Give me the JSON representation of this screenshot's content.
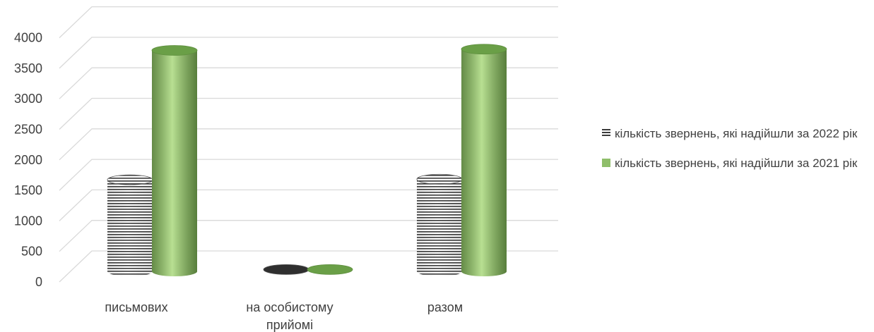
{
  "chart_data": {
    "type": "bar",
    "style": "3d-cylinder",
    "categories": [
      "письмових",
      "на особистому прийомі",
      "разом"
    ],
    "category_lines": [
      [
        "письмових"
      ],
      [
        "на особистому",
        "прийомі"
      ],
      [
        "разом"
      ]
    ],
    "series": [
      {
        "name": "кількість звернень, які надійшли за 2022 рік",
        "values": [
          1500,
          30,
          1510
        ],
        "color": "#595959",
        "pattern": "horizontal-stripes"
      },
      {
        "name": "кількість звернень, які надійшли за 2021 рік",
        "values": [
          3620,
          30,
          3640
        ],
        "color": "#8fbe6a"
      }
    ],
    "y_ticks": [
      0,
      500,
      1000,
      1500,
      2000,
      2500,
      3000,
      3500,
      4000
    ],
    "ylim": [
      0,
      4000
    ],
    "grid": true,
    "legend_position": "right"
  }
}
